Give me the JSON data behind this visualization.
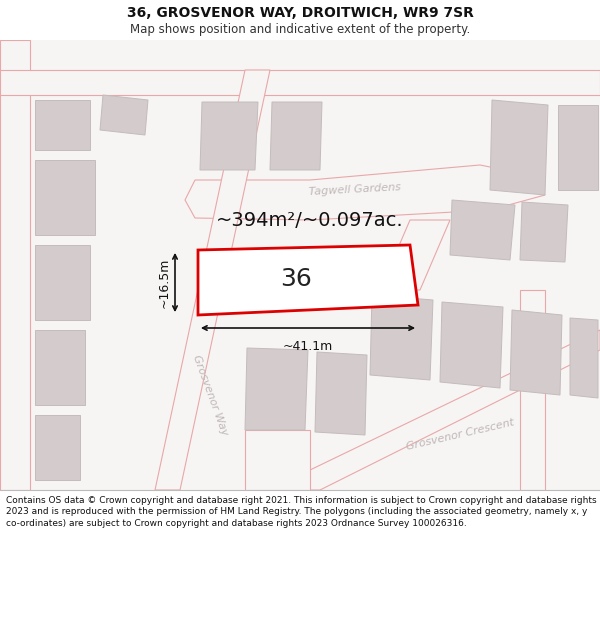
{
  "title": "36, GROSVENOR WAY, DROITWICH, WR9 7SR",
  "subtitle": "Map shows position and indicative extent of the property.",
  "footer": "Contains OS data © Crown copyright and database right 2021. This information is subject to Crown copyright and database rights 2023 and is reproduced with the permission of HM Land Registry. The polygons (including the associated geometry, namely x, y co-ordinates) are subject to Crown copyright and database rights 2023 Ordnance Survey 100026316.",
  "area_label": "~394m²/~0.097ac.",
  "width_label": "~41.1m",
  "height_label": "~16.5m",
  "number_label": "36",
  "bg_color": "#ffffff",
  "map_bg": "#f7f4f4",
  "road_color": "#e8a8a8",
  "building_fill": "#d4cccc",
  "building_edge": "#c4bcbc",
  "plot_fill": "#ffffff",
  "plot_edge": "#dd0000",
  "plot_edge_width": 2.0,
  "road_label_color": "#c0b8b8",
  "dim_color": "#111111",
  "title_fontsize": 10,
  "subtitle_fontsize": 8.5,
  "footer_fontsize": 6.5,
  "area_fontsize": 14,
  "number_fontsize": 18
}
